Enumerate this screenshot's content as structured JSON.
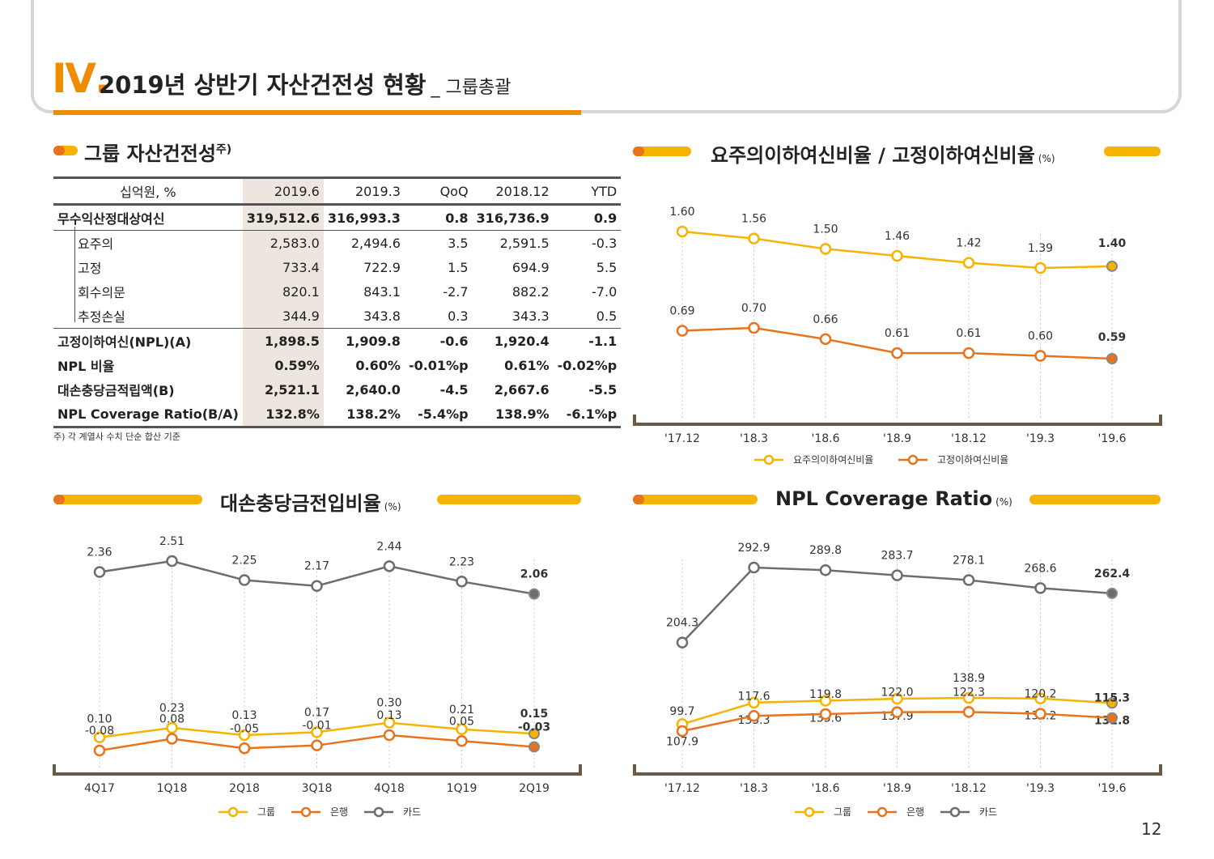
{
  "header": {
    "roman": "Ⅳ.",
    "title": "2019년 상반기 자산건전성 현황",
    "subtitle": "_ 그룹총괄"
  },
  "table_section": {
    "title": "그룹 자산건전성",
    "title_sup": "주)",
    "columns": [
      "십억원, %",
      "2019.6",
      "2019.3",
      "QoQ",
      "2018.12",
      "YTD"
    ],
    "rows": [
      {
        "label": "무수익산정대상여신",
        "values": [
          "319,512.6",
          "316,993.3",
          "0.8",
          "316,736.9",
          "0.9"
        ]
      },
      {
        "label": "요주의",
        "values": [
          "2,583.0",
          "2,494.6",
          "3.5",
          "2,591.5",
          "-0.3"
        ]
      },
      {
        "label": "고정",
        "values": [
          "733.4",
          "722.9",
          "1.5",
          "694.9",
          "5.5"
        ]
      },
      {
        "label": "회수의문",
        "values": [
          "820.1",
          "843.1",
          "-2.7",
          "882.2",
          "-7.0"
        ]
      },
      {
        "label": "추정손실",
        "values": [
          "344.9",
          "343.8",
          "0.3",
          "343.3",
          "0.5"
        ]
      },
      {
        "label": "고정이하여신(NPL)(A)",
        "values": [
          "1,898.5",
          "1,909.8",
          "-0.6",
          "1,920.4",
          "-1.1"
        ]
      },
      {
        "label": "NPL 비율",
        "values": [
          "0.59%",
          "0.60%",
          "-0.01%p",
          "0.61%",
          "-0.02%p"
        ]
      },
      {
        "label": "대손충당금적립액(B)",
        "values": [
          "2,521.1",
          "2,640.0",
          "-4.5",
          "2,667.6",
          "-5.5"
        ]
      },
      {
        "label": "NPL Coverage Ratio(B/A)",
        "values": [
          "132.8%",
          "138.2%",
          "-5.4%p",
          "138.9%",
          "-6.1%p"
        ]
      }
    ],
    "footnote": "주) 각 계열사 수치 단순 합산 기준"
  },
  "colors": {
    "yellow": "#f6b300",
    "orange": "#e8731c",
    "gray": "#6d6d6d",
    "axis": "#6b5a4a"
  },
  "page_number": "12",
  "chart_data": [
    {
      "type": "line",
      "title": "요주의이하여신비율 / 고정이하여신비율",
      "unit": "(%)",
      "categories": [
        "'17.12",
        "'18.3",
        "'18.6",
        "'18.9",
        "'18.12",
        "'19.3",
        "'19.6"
      ],
      "series": [
        {
          "name": "요주의이하여신비율",
          "color": "yellow",
          "values": [
            1.6,
            1.56,
            1.5,
            1.46,
            1.42,
            1.39,
            1.4
          ],
          "labels": [
            "1.60",
            "1.56",
            "1.50",
            "1.46",
            "1.42",
            "1.39",
            "1.40"
          ]
        },
        {
          "name": "고정이하여신비율",
          "color": "orange",
          "values": [
            0.69,
            0.7,
            0.66,
            0.61,
            0.61,
            0.6,
            0.59
          ],
          "labels": [
            "0.69",
            "0.70",
            "0.66",
            "0.61",
            "0.61",
            "0.60",
            "0.59"
          ]
        }
      ],
      "legend": "bottom"
    },
    {
      "type": "line",
      "title": "대손충당금전입비율",
      "unit": "(%)",
      "categories": [
        "4Q17",
        "1Q18",
        "2Q18",
        "3Q18",
        "4Q18",
        "1Q19",
        "2Q19"
      ],
      "series": [
        {
          "name": "그룹",
          "color": "yellow",
          "values": [
            0.1,
            0.23,
            0.13,
            0.17,
            0.3,
            0.21,
            0.15
          ],
          "labels": [
            "0.10",
            "0.23",
            "0.13",
            "0.17",
            "0.30",
            "0.21",
            "0.15"
          ]
        },
        {
          "name": "은행",
          "color": "orange",
          "values": [
            -0.08,
            0.08,
            -0.05,
            -0.01,
            0.13,
            0.05,
            -0.03
          ],
          "labels": [
            "-0.08",
            "0.08",
            "-0.05",
            "-0.01",
            "0.13",
            "0.05",
            "-0.03"
          ]
        },
        {
          "name": "카드",
          "color": "gray",
          "values": [
            2.36,
            2.51,
            2.25,
            2.17,
            2.44,
            2.23,
            2.06
          ],
          "labels": [
            "2.36",
            "2.51",
            "2.25",
            "2.17",
            "2.44",
            "2.23",
            "2.06"
          ]
        }
      ],
      "legend": "bottom"
    },
    {
      "type": "line",
      "title": "NPL Coverage Ratio",
      "unit": "(%)",
      "categories": [
        "'17.12",
        "'18.3",
        "'18.6",
        "'18.9",
        "'18.12",
        "'19.3",
        "'19.6"
      ],
      "series": [
        {
          "name": "그룹",
          "color": "yellow",
          "values": [
            107.9,
            133.3,
            135.6,
            137.9,
            138.9,
            138.2,
            132.8
          ],
          "labels": [
            "107.9",
            "133.3",
            "135.6",
            "137.9",
            "138.9",
            "138.2",
            "132.8"
          ]
        },
        {
          "name": "은행",
          "color": "orange",
          "values": [
            99.7,
            117.6,
            119.8,
            122.0,
            122.3,
            120.2,
            115.3
          ],
          "labels": [
            "99.7",
            "117.6",
            "119.8",
            "122.0",
            "122.3",
            "120.2",
            "115.3"
          ]
        },
        {
          "name": "카드",
          "color": "gray",
          "values": [
            204.3,
            292.9,
            289.8,
            283.7,
            278.1,
            268.6,
            262.4
          ],
          "labels": [
            "204.3",
            "292.9",
            "289.8",
            "283.7",
            "278.1",
            "268.6",
            "262.4"
          ]
        }
      ],
      "legend": "bottom"
    }
  ]
}
